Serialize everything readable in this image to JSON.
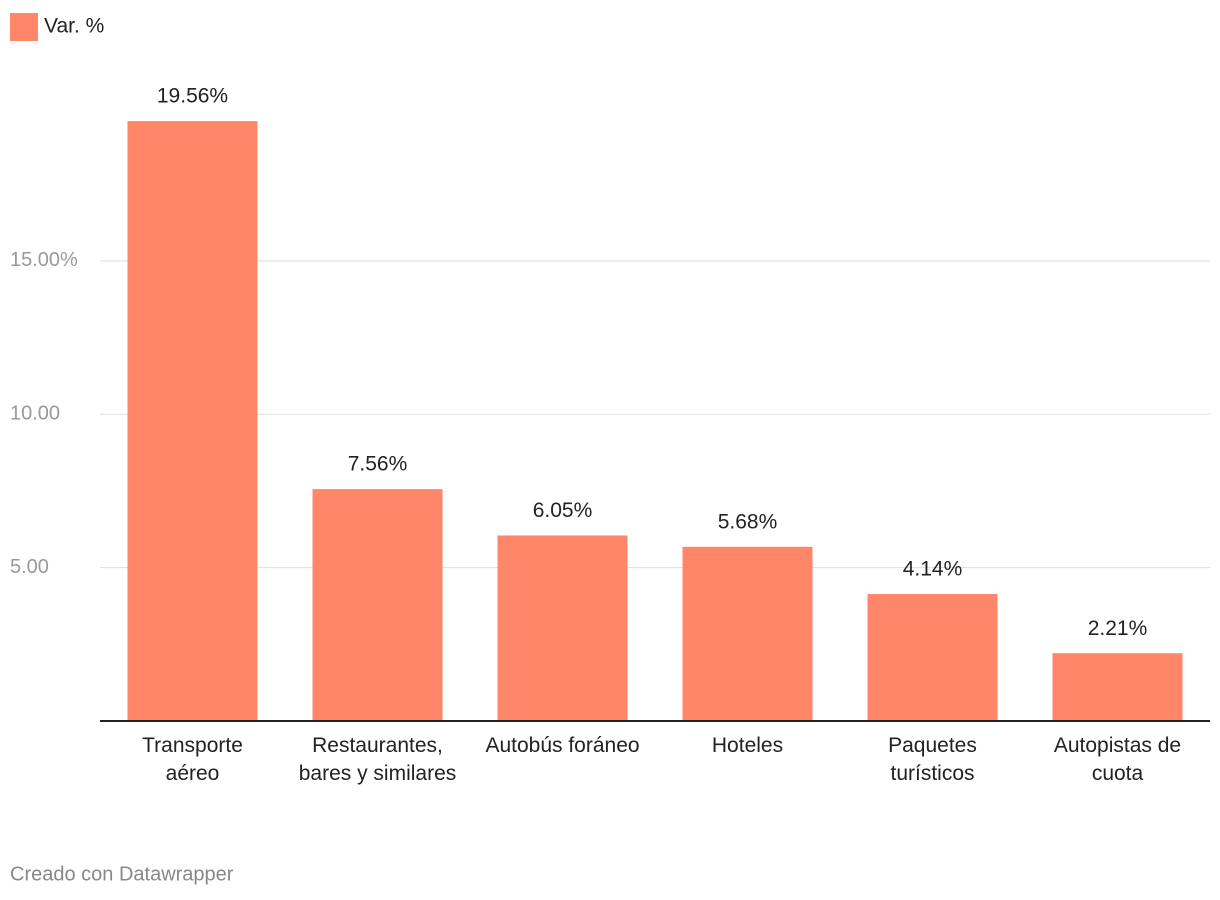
{
  "chart_data": {
    "type": "bar",
    "legend": "Var. %",
    "color": "#ff8669",
    "categories": [
      "Transporte aéreo",
      "Restaurantes, bares y similares",
      "Autobús foráneo",
      "Hoteles",
      "Paquetes turísticos",
      "Autopistas de cuota"
    ],
    "values": [
      19.56,
      7.56,
      6.05,
      5.68,
      4.14,
      2.21
    ],
    "value_labels": [
      "19.56%",
      "7.56%",
      "6.05%",
      "5.68%",
      "4.14%",
      "2.21%"
    ],
    "ylim": [
      0,
      20
    ],
    "yticks": [
      {
        "value": 5,
        "label": "5.00"
      },
      {
        "value": 10,
        "label": "10.00"
      },
      {
        "value": 15,
        "label": "15.00%"
      }
    ],
    "grid": true,
    "footer": "Creado con Datawrapper"
  }
}
